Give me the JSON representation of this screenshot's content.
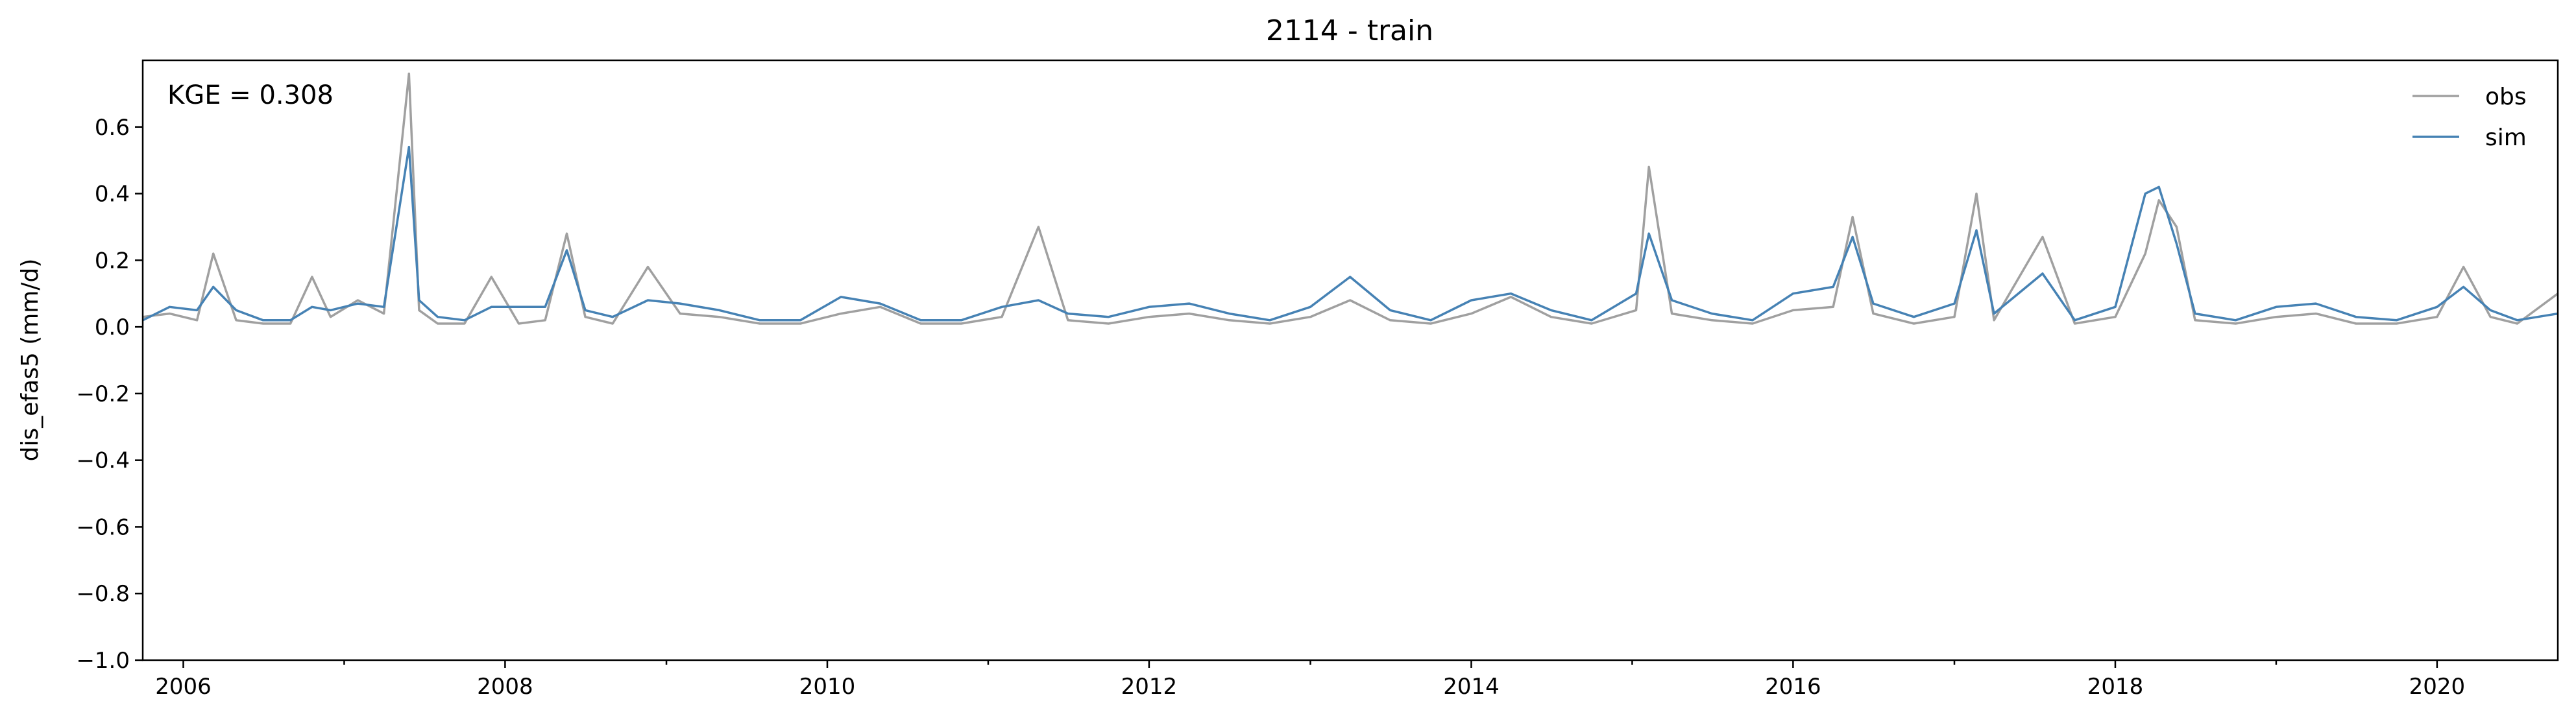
{
  "chart_data": {
    "type": "line",
    "title": "2114 - train",
    "xlabel": "",
    "ylabel": "dis_efas5 (mm/d)",
    "annotation": "KGE = 0.308",
    "x_range": [
      "2005-10-01",
      "2020-10-01"
    ],
    "ylim": [
      -1.0,
      0.8
    ],
    "x_ticks": [
      "2006",
      "2008",
      "2010",
      "2012",
      "2014",
      "2016",
      "2018",
      "2020"
    ],
    "y_ticks": [
      "0.6",
      "0.4",
      "0.2",
      "0.0",
      "−0.2",
      "−0.4",
      "−0.6",
      "−0.8",
      "−1.0"
    ],
    "grid": false,
    "legend_position": "top-right",
    "series": [
      {
        "name": "obs",
        "color": "#a0a0a0",
        "x": [
          "2005-10-01",
          "2005-12-01",
          "2006-02-01",
          "2006-03-10",
          "2006-05-01",
          "2006-07-01",
          "2006-09-01",
          "2006-10-20",
          "2006-12-01",
          "2007-02-01",
          "2007-04-01",
          "2007-05-28",
          "2007-06-20",
          "2007-08-01",
          "2007-10-01",
          "2007-12-01",
          "2008-02-01",
          "2008-04-01",
          "2008-05-20",
          "2008-07-01",
          "2008-09-01",
          "2008-11-20",
          "2009-02-01",
          "2009-05-01",
          "2009-08-01",
          "2009-11-01",
          "2010-02-01",
          "2010-05-01",
          "2010-08-01",
          "2010-11-01",
          "2011-02-01",
          "2011-04-25",
          "2011-07-01",
          "2011-10-01",
          "2012-01-01",
          "2012-04-01",
          "2012-07-01",
          "2012-10-01",
          "2013-01-01",
          "2013-04-01",
          "2013-07-01",
          "2013-10-01",
          "2014-01-01",
          "2014-04-01",
          "2014-07-01",
          "2014-10-01",
          "2015-01-10",
          "2015-02-08",
          "2015-04-01",
          "2015-07-01",
          "2015-10-01",
          "2016-01-01",
          "2016-04-01",
          "2016-05-15",
          "2016-07-01",
          "2016-10-01",
          "2017-01-01",
          "2017-02-20",
          "2017-04-01",
          "2017-07-20",
          "2017-10-01",
          "2018-01-01",
          "2018-03-10",
          "2018-04-10",
          "2018-05-20",
          "2018-07-01",
          "2018-10-01",
          "2019-01-01",
          "2019-04-01",
          "2019-07-01",
          "2019-10-01",
          "2020-01-01",
          "2020-03-01",
          "2020-05-01",
          "2020-07-01",
          "2020-10-01"
        ],
        "values": [
          0.03,
          0.04,
          0.02,
          0.22,
          0.02,
          0.01,
          0.01,
          0.15,
          0.03,
          0.08,
          0.04,
          0.76,
          0.05,
          0.01,
          0.01,
          0.15,
          0.01,
          0.02,
          0.28,
          0.03,
          0.01,
          0.18,
          0.04,
          0.03,
          0.01,
          0.01,
          0.04,
          0.06,
          0.01,
          0.01,
          0.03,
          0.3,
          0.02,
          0.01,
          0.03,
          0.04,
          0.02,
          0.01,
          0.03,
          0.08,
          0.02,
          0.01,
          0.04,
          0.09,
          0.03,
          0.01,
          0.05,
          0.48,
          0.04,
          0.02,
          0.01,
          0.05,
          0.06,
          0.33,
          0.04,
          0.01,
          0.03,
          0.4,
          0.02,
          0.27,
          0.01,
          0.03,
          0.22,
          0.38,
          0.3,
          0.02,
          0.01,
          0.03,
          0.04,
          0.01,
          0.01,
          0.03,
          0.18,
          0.03,
          0.01,
          0.1
        ]
      },
      {
        "name": "sim",
        "color": "#4682b4",
        "x": [
          "2005-10-01",
          "2005-12-01",
          "2006-02-01",
          "2006-03-10",
          "2006-05-01",
          "2006-07-01",
          "2006-09-01",
          "2006-10-20",
          "2006-12-01",
          "2007-02-01",
          "2007-04-01",
          "2007-05-28",
          "2007-06-20",
          "2007-08-01",
          "2007-10-01",
          "2007-12-01",
          "2008-02-01",
          "2008-04-01",
          "2008-05-20",
          "2008-07-01",
          "2008-09-01",
          "2008-11-20",
          "2009-02-01",
          "2009-05-01",
          "2009-08-01",
          "2009-11-01",
          "2010-02-01",
          "2010-05-01",
          "2010-08-01",
          "2010-11-01",
          "2011-02-01",
          "2011-04-25",
          "2011-07-01",
          "2011-10-01",
          "2012-01-01",
          "2012-04-01",
          "2012-07-01",
          "2012-10-01",
          "2013-01-01",
          "2013-04-01",
          "2013-07-01",
          "2013-10-01",
          "2014-01-01",
          "2014-04-01",
          "2014-07-01",
          "2014-10-01",
          "2015-01-10",
          "2015-02-08",
          "2015-04-01",
          "2015-07-01",
          "2015-10-01",
          "2016-01-01",
          "2016-04-01",
          "2016-05-15",
          "2016-07-01",
          "2016-10-01",
          "2017-01-01",
          "2017-02-20",
          "2017-04-01",
          "2017-07-20",
          "2017-10-01",
          "2018-01-01",
          "2018-03-10",
          "2018-04-10",
          "2018-05-20",
          "2018-07-01",
          "2018-10-01",
          "2019-01-01",
          "2019-04-01",
          "2019-07-01",
          "2019-10-01",
          "2020-01-01",
          "2020-03-01",
          "2020-05-01",
          "2020-07-01",
          "2020-10-01"
        ],
        "values": [
          0.02,
          0.06,
          0.05,
          0.12,
          0.05,
          0.02,
          0.02,
          0.06,
          0.05,
          0.07,
          0.06,
          0.54,
          0.08,
          0.03,
          0.02,
          0.06,
          0.06,
          0.06,
          0.23,
          0.05,
          0.03,
          0.08,
          0.07,
          0.05,
          0.02,
          0.02,
          0.09,
          0.07,
          0.02,
          0.02,
          0.06,
          0.08,
          0.04,
          0.03,
          0.06,
          0.07,
          0.04,
          0.02,
          0.06,
          0.15,
          0.05,
          0.02,
          0.08,
          0.1,
          0.05,
          0.02,
          0.1,
          0.28,
          0.08,
          0.04,
          0.02,
          0.1,
          0.12,
          0.27,
          0.07,
          0.03,
          0.07,
          0.29,
          0.04,
          0.16,
          0.02,
          0.06,
          0.4,
          0.42,
          0.25,
          0.04,
          0.02,
          0.06,
          0.07,
          0.03,
          0.02,
          0.06,
          0.12,
          0.05,
          0.02,
          0.04
        ]
      }
    ]
  }
}
